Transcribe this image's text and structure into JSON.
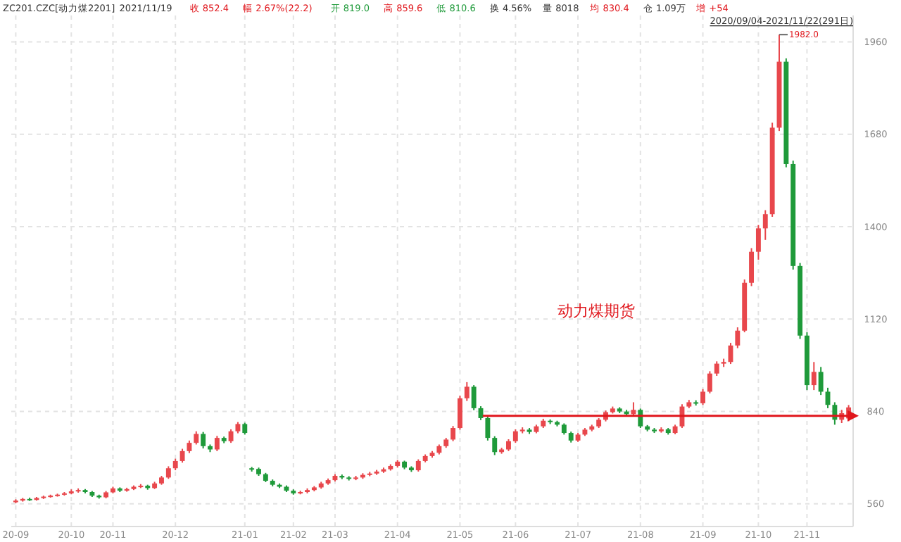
{
  "chart_data": {
    "type": "candlestick",
    "annotations": [
      "ZC201.CZC[动力煤2201]",
      "2021/11/19",
      "收 852.4",
      "幅 2.67%(22.2)",
      "开 819.0",
      "高 859.6",
      "低 810.6",
      "换 4.56%",
      "量 8018",
      "均 830.4",
      "仓 1.09万",
      "增 +54",
      "2020/09/04-2021/11/22(291日)",
      "1982.0",
      "动力煤期货"
    ],
    "categories": [
      "20-09",
      null,
      null,
      null,
      null,
      null,
      null,
      null,
      "20-10",
      null,
      null,
      null,
      null,
      null,
      "20-11",
      null,
      null,
      null,
      null,
      null,
      null,
      null,
      null,
      "20-12",
      null,
      null,
      null,
      null,
      null,
      null,
      null,
      null,
      null,
      "21-01",
      null,
      null,
      null,
      null,
      null,
      null,
      "21-02",
      null,
      null,
      null,
      null,
      null,
      "21-03",
      null,
      null,
      null,
      null,
      null,
      null,
      null,
      null,
      "21-04",
      null,
      null,
      null,
      null,
      null,
      null,
      null,
      null,
      "21-05",
      null,
      null,
      null,
      null,
      null,
      null,
      null,
      "21-06",
      null,
      null,
      null,
      null,
      null,
      null,
      null,
      null,
      "21-07",
      null,
      null,
      null,
      null,
      null,
      null,
      null,
      null,
      "21-08",
      null,
      null,
      null,
      null,
      null,
      null,
      null,
      null,
      "21-09",
      null,
      null,
      null,
      null,
      null,
      null,
      null,
      "21-10",
      null,
      null,
      null,
      null,
      null,
      null,
      "21-11",
      null,
      null,
      null,
      null,
      null,
      null
    ],
    "ohlc": [
      [
        565,
        574,
        562,
        570
      ],
      [
        570,
        578,
        567,
        575
      ],
      [
        575,
        579,
        569,
        572
      ],
      [
        572,
        581,
        570,
        578
      ],
      [
        578,
        585,
        575,
        582
      ],
      [
        582,
        588,
        579,
        585
      ],
      [
        585,
        591,
        582,
        588
      ],
      [
        588,
        596,
        585,
        592
      ],
      [
        592,
        604,
        589,
        598
      ],
      [
        598,
        607,
        594,
        602
      ],
      [
        602,
        605,
        592,
        596
      ],
      [
        596,
        599,
        581,
        585
      ],
      [
        585,
        588,
        576,
        580
      ],
      [
        580,
        599,
        577,
        595
      ],
      [
        595,
        612,
        592,
        607
      ],
      [
        607,
        610,
        596,
        600
      ],
      [
        600,
        609,
        597,
        605
      ],
      [
        605,
        616,
        602,
        612
      ],
      [
        612,
        620,
        608,
        615
      ],
      [
        615,
        618,
        603,
        608
      ],
      [
        608,
        627,
        605,
        622
      ],
      [
        622,
        645,
        618,
        640
      ],
      [
        640,
        674,
        636,
        668
      ],
      [
        668,
        697,
        662,
        690
      ],
      [
        690,
        727,
        685,
        720
      ],
      [
        720,
        752,
        714,
        745
      ],
      [
        745,
        780,
        740,
        772
      ],
      [
        772,
        778,
        728,
        735
      ],
      [
        735,
        740,
        717,
        725
      ],
      [
        725,
        766,
        720,
        760
      ],
      [
        760,
        764,
        744,
        750
      ],
      [
        750,
        786,
        745,
        780
      ],
      [
        780,
        808,
        774,
        802
      ],
      [
        802,
        806,
        770,
        775
      ],
      [
        668,
        672,
        658,
        666
      ],
      [
        666,
        670,
        645,
        650
      ],
      [
        650,
        654,
        626,
        630
      ],
      [
        630,
        634,
        613,
        618
      ],
      [
        618,
        622,
        608,
        612
      ],
      [
        612,
        616,
        596,
        600
      ],
      [
        600,
        604,
        588,
        592
      ],
      [
        592,
        600,
        589,
        596
      ],
      [
        596,
        607,
        592,
        602
      ],
      [
        602,
        614,
        598,
        610
      ],
      [
        610,
        627,
        606,
        622
      ],
      [
        622,
        637,
        618,
        632
      ],
      [
        632,
        650,
        628,
        645
      ],
      [
        645,
        649,
        635,
        640
      ],
      [
        640,
        644,
        631,
        636
      ],
      [
        636,
        645,
        632,
        640
      ],
      [
        640,
        653,
        636,
        648
      ],
      [
        648,
        657,
        644,
        652
      ],
      [
        652,
        663,
        648,
        658
      ],
      [
        658,
        670,
        654,
        665
      ],
      [
        665,
        680,
        661,
        675
      ],
      [
        675,
        693,
        670,
        688
      ],
      [
        688,
        691,
        665,
        670
      ],
      [
        670,
        674,
        657,
        662
      ],
      [
        662,
        695,
        658,
        690
      ],
      [
        690,
        710,
        686,
        705
      ],
      [
        705,
        720,
        700,
        715
      ],
      [
        715,
        740,
        710,
        735
      ],
      [
        735,
        760,
        730,
        755
      ],
      [
        755,
        796,
        750,
        790
      ],
      [
        790,
        888,
        785,
        880
      ],
      [
        880,
        929,
        872,
        915
      ],
      [
        915,
        920,
        844,
        850
      ],
      [
        850,
        856,
        814,
        820
      ],
      [
        820,
        825,
        752,
        760
      ],
      [
        760,
        765,
        708,
        717
      ],
      [
        717,
        730,
        712,
        725
      ],
      [
        725,
        756,
        720,
        750
      ],
      [
        750,
        786,
        745,
        780
      ],
      [
        780,
        792,
        774,
        785
      ],
      [
        785,
        790,
        772,
        778
      ],
      [
        778,
        800,
        774,
        795
      ],
      [
        795,
        818,
        790,
        812
      ],
      [
        812,
        816,
        802,
        808
      ],
      [
        808,
        812,
        795,
        800
      ],
      [
        800,
        804,
        770,
        775
      ],
      [
        775,
        779,
        746,
        752
      ],
      [
        752,
        775,
        748,
        770
      ],
      [
        770,
        790,
        766,
        785
      ],
      [
        785,
        800,
        780,
        795
      ],
      [
        795,
        820,
        790,
        815
      ],
      [
        815,
        843,
        810,
        838
      ],
      [
        838,
        855,
        834,
        849
      ],
      [
        849,
        853,
        835,
        840
      ],
      [
        840,
        845,
        826,
        832
      ],
      [
        832,
        868,
        828,
        845
      ],
      [
        845,
        849,
        790,
        795
      ],
      [
        795,
        799,
        780,
        785
      ],
      [
        785,
        790,
        775,
        780
      ],
      [
        780,
        792,
        776,
        786
      ],
      [
        786,
        790,
        770,
        775
      ],
      [
        775,
        800,
        771,
        795
      ],
      [
        795,
        862,
        790,
        855
      ],
      [
        855,
        875,
        850,
        868
      ],
      [
        868,
        874,
        858,
        865
      ],
      [
        865,
        908,
        860,
        900
      ],
      [
        900,
        962,
        895,
        955
      ],
      [
        955,
        992,
        948,
        985
      ],
      [
        985,
        1000,
        975,
        990
      ],
      [
        990,
        1048,
        984,
        1040
      ],
      [
        1040,
        1095,
        1032,
        1085
      ],
      [
        1085,
        1240,
        1080,
        1230
      ],
      [
        1230,
        1335,
        1220,
        1324
      ],
      [
        1324,
        1405,
        1300,
        1395
      ],
      [
        1395,
        1450,
        1360,
        1438
      ],
      [
        1438,
        1715,
        1430,
        1700
      ],
      [
        1700,
        1982,
        1690,
        1900
      ],
      [
        1900,
        1910,
        1580,
        1590
      ],
      [
        1590,
        1600,
        1270,
        1281
      ],
      [
        1281,
        1290,
        1060,
        1070
      ],
      [
        1070,
        1080,
        905,
        920
      ],
      [
        920,
        990,
        905,
        960
      ],
      [
        960,
        975,
        890,
        900
      ],
      [
        900,
        912,
        850,
        860
      ],
      [
        860,
        868,
        800,
        815
      ],
      [
        815,
        845,
        805,
        835
      ],
      [
        819,
        859.6,
        810.6,
        852.4
      ]
    ],
    "colors": [
      "#e8474c",
      "#e8474c",
      "#1f9a3a",
      "#e8474c",
      "#e8474c",
      "#e8474c",
      "#e8474c",
      "#e8474c",
      "#e8474c",
      "#e8474c",
      "#1f9a3a",
      "#1f9a3a",
      "#1f9a3a",
      "#e8474c",
      "#e8474c",
      "#1f9a3a",
      "#e8474c",
      "#e8474c",
      "#e8474c",
      "#1f9a3a",
      "#e8474c",
      "#e8474c",
      "#e8474c",
      "#e8474c",
      "#e8474c",
      "#e8474c",
      "#e8474c",
      "#1f9a3a",
      "#1f9a3a",
      "#e8474c",
      "#1f9a3a",
      "#e8474c",
      "#e8474c",
      "#1f9a3a",
      "#1f9a3a",
      "#1f9a3a",
      "#1f9a3a",
      "#1f9a3a",
      "#1f9a3a",
      "#1f9a3a",
      "#1f9a3a",
      "#e8474c",
      "#e8474c",
      "#e8474c",
      "#e8474c",
      "#e8474c",
      "#e8474c",
      "#1f9a3a",
      "#1f9a3a",
      "#e8474c",
      "#e8474c",
      "#e8474c",
      "#e8474c",
      "#e8474c",
      "#e8474c",
      "#e8474c",
      "#1f9a3a",
      "#1f9a3a",
      "#e8474c",
      "#e8474c",
      "#e8474c",
      "#e8474c",
      "#e8474c",
      "#e8474c",
      "#e8474c",
      "#e8474c",
      "#1f9a3a",
      "#1f9a3a",
      "#1f9a3a",
      "#1f9a3a",
      "#e8474c",
      "#e8474c",
      "#e8474c",
      "#e8474c",
      "#1f9a3a",
      "#e8474c",
      "#e8474c",
      "#1f9a3a",
      "#1f9a3a",
      "#1f9a3a",
      "#1f9a3a",
      "#e8474c",
      "#e8474c",
      "#e8474c",
      "#e8474c",
      "#e8474c",
      "#e8474c",
      "#1f9a3a",
      "#1f9a3a",
      "#e8474c",
      "#1f9a3a",
      "#1f9a3a",
      "#1f9a3a",
      "#e8474c",
      "#1f9a3a",
      "#e8474c",
      "#e8474c",
      "#e8474c",
      "#1f9a3a",
      "#e8474c",
      "#e8474c",
      "#e8474c",
      "#e8474c",
      "#e8474c",
      "#e8474c",
      "#e8474c",
      "#e8474c",
      "#e8474c",
      "#e8474c",
      "#e8474c",
      "#e8474c",
      "#1f9a3a",
      "#1f9a3a",
      "#1f9a3a",
      "#1f9a3a",
      "#e8474c",
      "#1f9a3a",
      "#1f9a3a",
      "#1f9a3a",
      "#e8474c",
      "#e8474c"
    ],
    "ylim": [
      500,
      2040
    ],
    "yticks": [
      560,
      840,
      1120,
      1400,
      1680,
      1960
    ],
    "ref_lines": [
      {
        "axis": "y",
        "value": 827,
        "color": "#e0161c"
      }
    ],
    "grid": true
  }
}
